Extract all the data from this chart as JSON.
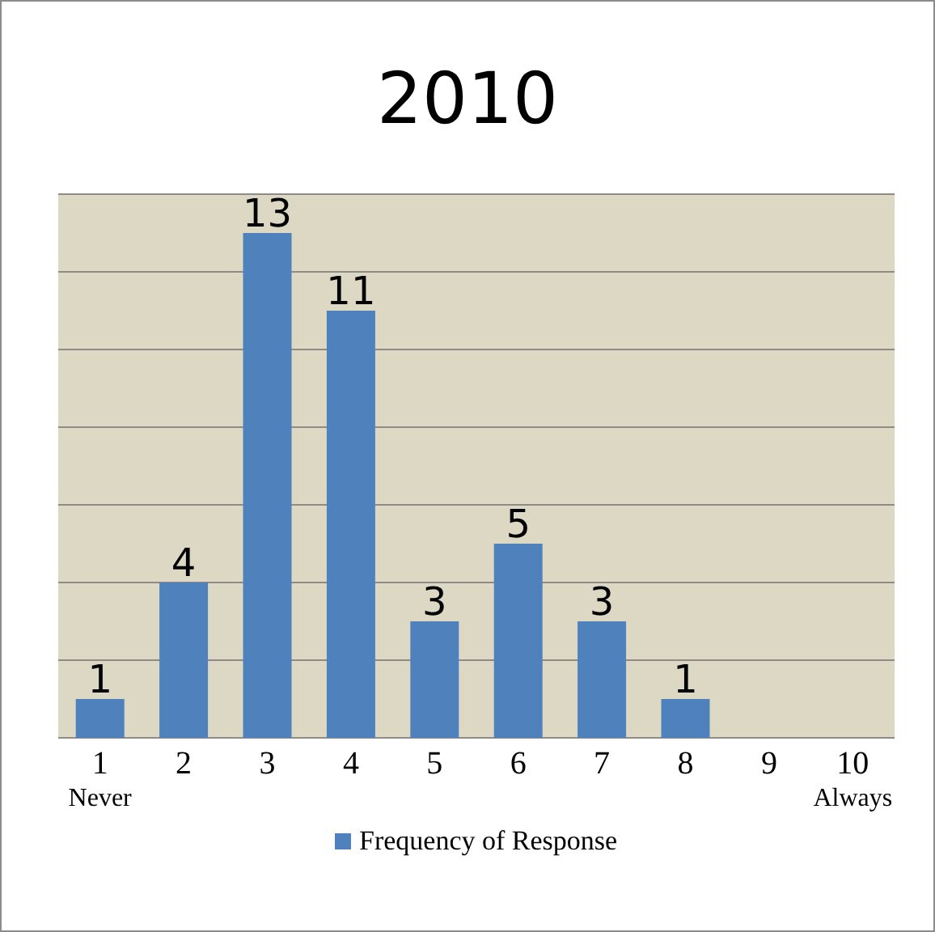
{
  "chart_data": {
    "type": "bar",
    "title": "2010",
    "categories": [
      "1\nNever",
      "2",
      "3",
      "4",
      "5",
      "6",
      "7",
      "8",
      "9",
      "10\nAlways"
    ],
    "series": [
      {
        "name": "Frequency of Response",
        "color": "#4f81bd",
        "values": [
          1,
          4,
          13,
          11,
          3,
          5,
          3,
          1,
          null,
          null
        ]
      }
    ],
    "data_labels": true,
    "grid": "y",
    "tick_labels": "x",
    "legend": "bottom"
  }
}
